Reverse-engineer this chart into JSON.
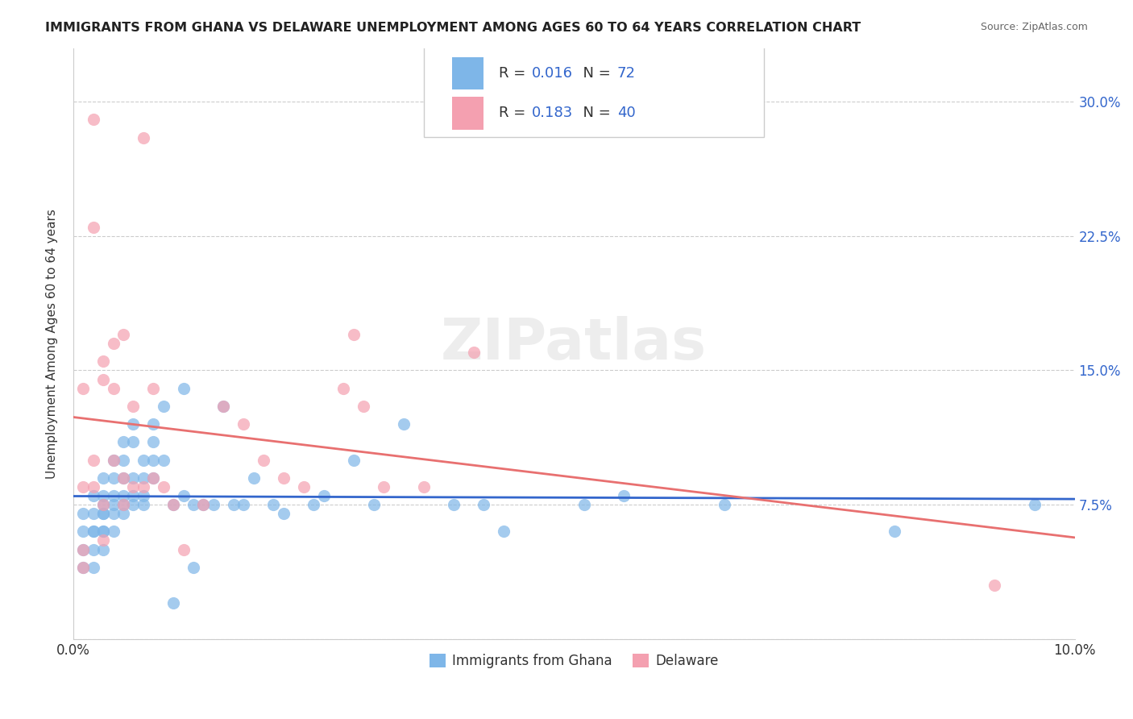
{
  "title": "IMMIGRANTS FROM GHANA VS DELAWARE UNEMPLOYMENT AMONG AGES 60 TO 64 YEARS CORRELATION CHART",
  "source": "Source: ZipAtlas.com",
  "xlabel": "",
  "ylabel": "Unemployment Among Ages 60 to 64 years",
  "xlim": [
    0.0,
    0.1
  ],
  "ylim": [
    0.0,
    0.33
  ],
  "xticks": [
    0.0,
    0.02,
    0.04,
    0.06,
    0.08,
    0.1
  ],
  "xticklabels": [
    "0.0%",
    "",
    "",
    "",
    "",
    "10.0%"
  ],
  "yticks": [
    0.0,
    0.075,
    0.15,
    0.225,
    0.3
  ],
  "yticklabels": [
    "",
    "7.5%",
    "15.0%",
    "22.5%",
    "30.0%"
  ],
  "legend_labels": [
    "Immigrants from Ghana",
    "Delaware"
  ],
  "series1_color": "#7EB6E8",
  "series2_color": "#F4A0B0",
  "line1_color": "#3366CC",
  "line2_color": "#E87070",
  "R1": 0.016,
  "N1": 72,
  "R2": 0.183,
  "N2": 40,
  "watermark": "ZIPatlas",
  "blue_x": [
    0.001,
    0.001,
    0.001,
    0.001,
    0.002,
    0.002,
    0.002,
    0.002,
    0.002,
    0.002,
    0.003,
    0.003,
    0.003,
    0.003,
    0.003,
    0.003,
    0.003,
    0.003,
    0.004,
    0.004,
    0.004,
    0.004,
    0.004,
    0.004,
    0.005,
    0.005,
    0.005,
    0.005,
    0.005,
    0.005,
    0.006,
    0.006,
    0.006,
    0.006,
    0.006,
    0.007,
    0.007,
    0.007,
    0.007,
    0.008,
    0.008,
    0.008,
    0.008,
    0.009,
    0.009,
    0.01,
    0.01,
    0.011,
    0.011,
    0.012,
    0.012,
    0.013,
    0.014,
    0.015,
    0.016,
    0.017,
    0.018,
    0.02,
    0.021,
    0.024,
    0.025,
    0.028,
    0.03,
    0.033,
    0.038,
    0.041,
    0.043,
    0.051,
    0.055,
    0.065,
    0.082,
    0.096
  ],
  "blue_y": [
    0.04,
    0.06,
    0.05,
    0.07,
    0.08,
    0.06,
    0.05,
    0.07,
    0.04,
    0.06,
    0.07,
    0.05,
    0.06,
    0.08,
    0.07,
    0.06,
    0.09,
    0.075,
    0.1,
    0.09,
    0.08,
    0.07,
    0.075,
    0.06,
    0.08,
    0.11,
    0.1,
    0.09,
    0.075,
    0.07,
    0.075,
    0.12,
    0.11,
    0.09,
    0.08,
    0.1,
    0.09,
    0.08,
    0.075,
    0.12,
    0.11,
    0.1,
    0.09,
    0.1,
    0.13,
    0.02,
    0.075,
    0.14,
    0.08,
    0.04,
    0.075,
    0.075,
    0.075,
    0.13,
    0.075,
    0.075,
    0.09,
    0.075,
    0.07,
    0.075,
    0.08,
    0.1,
    0.075,
    0.12,
    0.075,
    0.075,
    0.06,
    0.075,
    0.08,
    0.075,
    0.06,
    0.075
  ],
  "pink_x": [
    0.001,
    0.001,
    0.001,
    0.001,
    0.002,
    0.002,
    0.002,
    0.002,
    0.003,
    0.003,
    0.003,
    0.003,
    0.004,
    0.004,
    0.004,
    0.005,
    0.005,
    0.005,
    0.006,
    0.006,
    0.007,
    0.007,
    0.008,
    0.008,
    0.009,
    0.01,
    0.011,
    0.013,
    0.015,
    0.017,
    0.019,
    0.021,
    0.023,
    0.027,
    0.028,
    0.029,
    0.031,
    0.035,
    0.04,
    0.092
  ],
  "pink_y": [
    0.04,
    0.05,
    0.085,
    0.14,
    0.085,
    0.1,
    0.29,
    0.23,
    0.055,
    0.075,
    0.145,
    0.155,
    0.14,
    0.1,
    0.165,
    0.075,
    0.09,
    0.17,
    0.085,
    0.13,
    0.085,
    0.28,
    0.09,
    0.14,
    0.085,
    0.075,
    0.05,
    0.075,
    0.13,
    0.12,
    0.1,
    0.09,
    0.085,
    0.14,
    0.17,
    0.13,
    0.085,
    0.085,
    0.16,
    0.03
  ]
}
